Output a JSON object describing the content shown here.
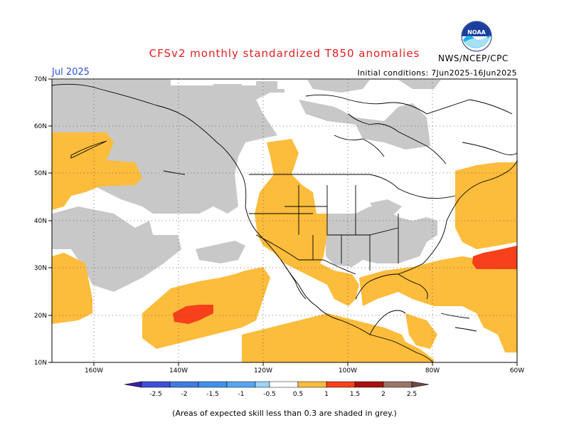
{
  "title": "CFSv2 monthly standardized T850 anomalies",
  "month_label": "Jul 2025",
  "initial_conditions": "Initial conditions: 7Jun2025-16Jun2025",
  "agency": "NWS/NCEP/CPC",
  "logo_text": "NOAA",
  "footnote": "(Areas of expected skill less than 0.3 are shaded in grey.)",
  "map": {
    "lat_labels": [
      "70N",
      "60N",
      "50N",
      "40N",
      "30N",
      "20N",
      "10N"
    ],
    "lon_labels": [
      "160W",
      "140W",
      "120W",
      "100W",
      "80W",
      "60W"
    ],
    "colors": {
      "low_skill_grey": "#c8c8c8",
      "anom_0_5": "#fcbc3c",
      "anom_1_0": "#f8401a",
      "coast": "#000000"
    }
  },
  "legend": {
    "labels": [
      "-2.5",
      "-2",
      "-1.5",
      "-1",
      "-0.5",
      "0.5",
      "1",
      "1.5",
      "2",
      "2.5"
    ],
    "colors": [
      "#3b1fa8",
      "#3f4fd8",
      "#3f7be0",
      "#55a6f0",
      "#9ed2f8",
      "#ffffff",
      "#fcbc3c",
      "#f8401a",
      "#c01010",
      "#8e0a0a",
      "#9c7468",
      "#6e4a44"
    ]
  }
}
